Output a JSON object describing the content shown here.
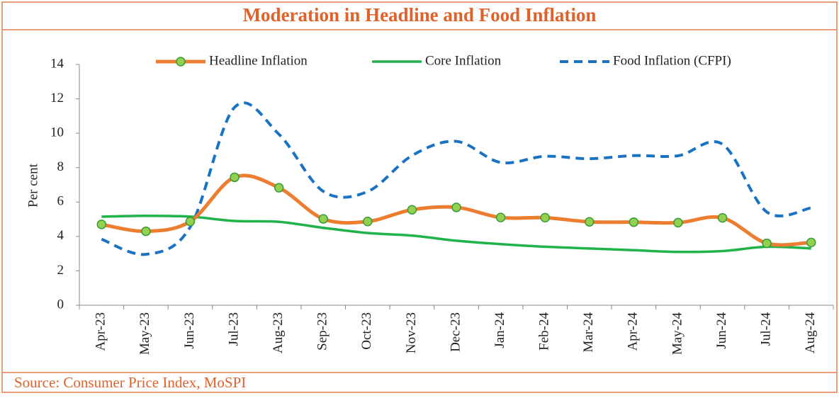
{
  "chart_data": {
    "type": "line",
    "title": "Moderation in Headline and Food Inflation",
    "y_label": "Per cent",
    "source": "Source: Consumer Price Index, MoSPI",
    "categories": [
      "Apr-23",
      "May-23",
      "Jun-23",
      "Jul-23",
      "Aug-23",
      "Sep-23",
      "Oct-23",
      "Nov-23",
      "Dec-23",
      "Jan-24",
      "Feb-24",
      "Mar-24",
      "Apr-24",
      "May-24",
      "Jun-24",
      "Jul-24",
      "Aug-24"
    ],
    "ylim": [
      0,
      14
    ],
    "yticks": [
      0,
      2,
      4,
      6,
      8,
      10,
      12,
      14
    ],
    "series": [
      {
        "name": "Headline Inflation",
        "color": "#ed7d31",
        "values": [
          4.7,
          4.3,
          4.87,
          7.44,
          6.83,
          5.02,
          4.87,
          5.55,
          5.69,
          5.1,
          5.09,
          4.85,
          4.83,
          4.8,
          5.08,
          3.6,
          3.65
        ]
      },
      {
        "name": "Core Inflation",
        "color": "#1fb34a",
        "values": [
          5.15,
          5.2,
          5.15,
          4.9,
          4.85,
          4.5,
          4.2,
          4.05,
          3.75,
          3.55,
          3.4,
          3.3,
          3.2,
          3.1,
          3.15,
          3.4,
          3.3
        ]
      },
      {
        "name": "Food Inflation (CFPI)",
        "color": "#1a73c2",
        "values": [
          3.84,
          2.96,
          4.55,
          11.51,
          9.94,
          6.62,
          6.61,
          8.7,
          9.53,
          8.3,
          8.66,
          8.52,
          8.7,
          8.69,
          9.36,
          5.42,
          5.66
        ]
      }
    ]
  }
}
